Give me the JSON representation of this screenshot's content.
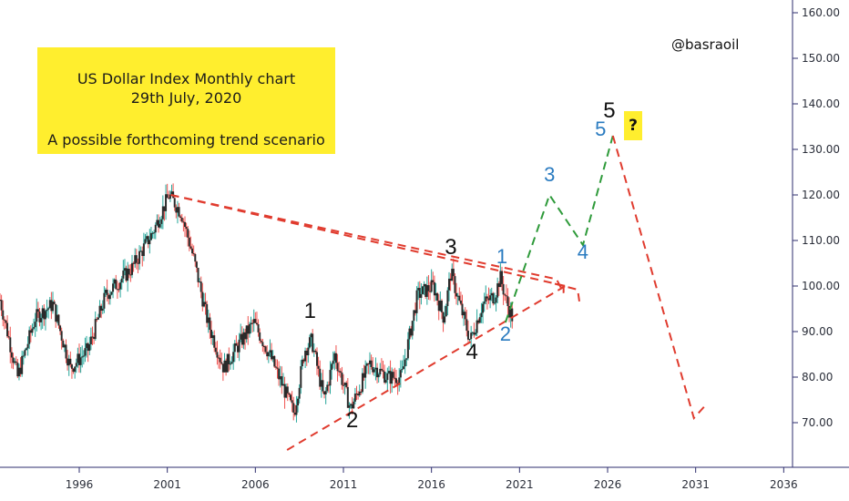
{
  "chart_data": {
    "type": "candlestick",
    "title_lines": [
      "US Dollar Index Monthly chart",
      "29th July, 2020",
      "",
      "A possible forthcoming trend scenario"
    ],
    "handle": "@basraoil",
    "y_axis": {
      "min": 60,
      "max": 162,
      "ticks": [
        "160.00",
        "150.00",
        "140.00",
        "130.00",
        "120.00",
        "110.00",
        "100.00",
        "90.00",
        "80.00",
        "70.00"
      ],
      "tick_values": [
        160,
        150,
        140,
        130,
        120,
        110,
        100,
        90,
        80,
        70
      ]
    },
    "x_axis": {
      "min": 1991.5,
      "max": 2036.5,
      "ticks": [
        "1996",
        "2001",
        "2006",
        "2011",
        "2016",
        "2021",
        "2026",
        "2031",
        "2036"
      ],
      "tick_values": [
        1996,
        2001,
        2006,
        2011,
        2016,
        2021,
        2026,
        2031,
        2036
      ]
    },
    "price_path": [
      [
        1991.5,
        97
      ],
      [
        1992.5,
        80
      ],
      [
        1993.5,
        93
      ],
      [
        1994.5,
        96
      ],
      [
        1995.5,
        82
      ],
      [
        1996.5,
        86
      ],
      [
        1997.5,
        98
      ],
      [
        1999,
        104
      ],
      [
        2000.2,
        112
      ],
      [
        2001.1,
        120
      ],
      [
        2001.8,
        116
      ],
      [
        2002.5,
        106
      ],
      [
        2003.3,
        92
      ],
      [
        2004.2,
        82
      ],
      [
        2005.2,
        88
      ],
      [
        2005.9,
        92
      ],
      [
        2006.8,
        85
      ],
      [
        2008.2,
        72
      ],
      [
        2008.8,
        86
      ],
      [
        2009.2,
        88
      ],
      [
        2009.9,
        75
      ],
      [
        2010.5,
        85
      ],
      [
        2011.4,
        73
      ],
      [
        2012.5,
        83
      ],
      [
        2013.5,
        80
      ],
      [
        2014.3,
        80
      ],
      [
        2015.2,
        98
      ],
      [
        2016.1,
        100
      ],
      [
        2016.7,
        93
      ],
      [
        2017.1,
        103
      ],
      [
        2017.6,
        96
      ],
      [
        2018.2,
        88
      ],
      [
        2018.9,
        96
      ],
      [
        2019.6,
        98
      ],
      [
        2019.9,
        102
      ],
      [
        2020.3,
        96
      ],
      [
        2020.6,
        93
      ]
    ],
    "triangle_lines": [
      {
        "from": [
          2001.2,
          120
        ],
        "to": [
          2023.6,
          100
        ]
      },
      {
        "from": [
          2007.8,
          64
        ],
        "to": [
          2023.6,
          100
        ]
      }
    ],
    "scenario_arrows": [
      {
        "color": "#e03b2e",
        "points": [
          [
            2001.2,
            120
          ],
          [
            2023.1,
            101.5
          ],
          [
            2023.5,
            98.5
          ],
          [
            2023.5,
            100.5
          ]
        ]
      },
      {
        "color": "#e03b2e",
        "points": [
          [
            2023.0,
            100.5
          ],
          [
            2024.3,
            99.2
          ],
          [
            2024.4,
            96.5
          ]
        ]
      }
    ],
    "projection_bull": [
      [
        2020.2,
        92
      ],
      [
        2022.7,
        120
      ],
      [
        2024.6,
        109
      ],
      [
        2026.3,
        133
      ]
    ],
    "projection_bear": [
      [
        2026.3,
        133
      ],
      [
        2030.9,
        71
      ],
      [
        2031.6,
        74
      ]
    ],
    "wave_labels_black": [
      {
        "text": "1",
        "x": 2009.1,
        "y": 93
      },
      {
        "text": "2",
        "x": 2011.5,
        "y": 69
      },
      {
        "text": "3",
        "x": 2017.1,
        "y": 107
      },
      {
        "text": "4",
        "x": 2018.3,
        "y": 84
      },
      {
        "text": "5",
        "x": 2026.1,
        "y": 137
      }
    ],
    "wave_labels_blue": [
      {
        "text": "1",
        "x": 2020.0,
        "y": 105
      },
      {
        "text": "2",
        "x": 2020.2,
        "y": 88
      },
      {
        "text": "3",
        "x": 2022.7,
        "y": 123
      },
      {
        "text": "4",
        "x": 2024.6,
        "y": 106
      },
      {
        "text": "5",
        "x": 2025.6,
        "y": 133
      }
    ],
    "question_mark": "?",
    "colors": {
      "up": "#26a69a",
      "down": "#ef5350",
      "candle_body": "#2b2b2b",
      "dash_red": "#e03b2e",
      "dash_green": "#2e9a3a",
      "wave_blue": "#2a7bc0",
      "note_bg": "#ffee2e"
    }
  }
}
